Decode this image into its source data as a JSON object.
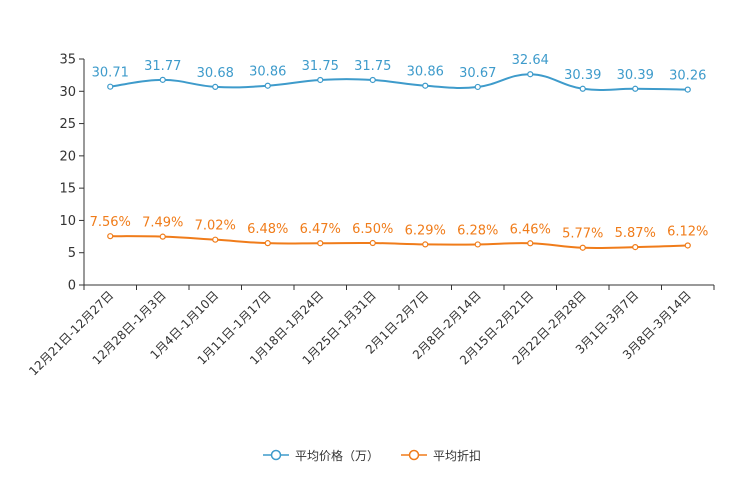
{
  "chart_data": {
    "type": "line",
    "categories": [
      "12月21日-12月27日",
      "12月28日-1月3日",
      "1月4日-1月10日",
      "1月11日-1月17日",
      "1月18日-1月24日",
      "1月25日-1月31日",
      "2月1日-2月7日",
      "2月8日-2月14日",
      "2月15日-2月21日",
      "2月22日-2月28日",
      "3月1日-3月7日",
      "3月8日-3月14日"
    ],
    "ylim": [
      0,
      35
    ],
    "yticks": [
      0,
      5,
      10,
      15,
      20,
      25,
      30,
      35
    ],
    "grid": false,
    "legend_position": "bottom",
    "series": [
      {
        "name": "平均价格（万）",
        "color": "#3e9bcb",
        "values": [
          30.71,
          31.77,
          30.68,
          30.86,
          31.75,
          31.75,
          30.86,
          30.67,
          32.64,
          30.39,
          30.39,
          30.26
        ],
        "labels": [
          "30.71",
          "31.77",
          "30.68",
          "30.86",
          "31.75",
          "31.75",
          "30.86",
          "30.67",
          "32.64",
          "30.39",
          "30.39",
          "30.26"
        ]
      },
      {
        "name": "平均折扣",
        "color": "#f07c1a",
        "values": [
          7.56,
          7.49,
          7.02,
          6.48,
          6.47,
          6.5,
          6.29,
          6.28,
          6.46,
          5.77,
          5.87,
          6.12
        ],
        "labels": [
          "7.56%",
          "7.49%",
          "7.02%",
          "6.48%",
          "6.47%",
          "6.50%",
          "6.29%",
          "6.28%",
          "6.46%",
          "5.77%",
          "5.87%",
          "6.12%"
        ]
      }
    ]
  },
  "legend": {
    "price_label": "平均价格（万）",
    "discount_label": "平均折扣"
  }
}
